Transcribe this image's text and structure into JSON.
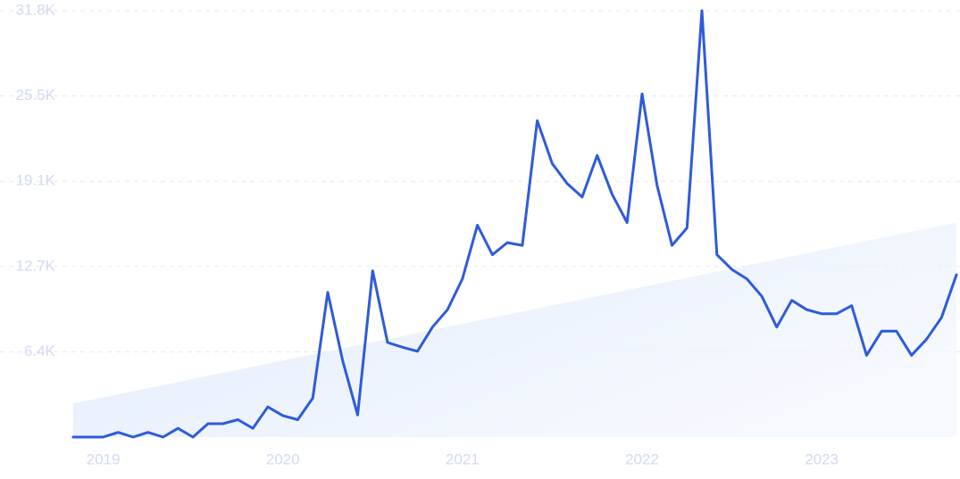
{
  "colors": {
    "line": "#2f5bd9",
    "trend_fill": "#dde9fb",
    "tick_text": "#d3daf2",
    "grid": "#e6eaf4"
  },
  "chart_data": {
    "type": "line",
    "title": "",
    "xlabel": "",
    "ylabel": "",
    "grid": true,
    "ylim": [
      0,
      31800
    ],
    "xlim": [
      "2018-11-01",
      "2023-10-01"
    ],
    "y_ticks": [
      {
        "value": 6360,
        "label": "6.4K"
      },
      {
        "value": 12720,
        "label": "12.7K"
      },
      {
        "value": 19080,
        "label": "19.1K"
      },
      {
        "value": 25440,
        "label": "25.5K"
      },
      {
        "value": 31800,
        "label": "31.8K"
      }
    ],
    "x_ticks": [
      {
        "value": "2019-01",
        "label": "2019"
      },
      {
        "value": "2020-01",
        "label": "2020"
      },
      {
        "value": "2021-01",
        "label": "2021"
      },
      {
        "value": "2022-01",
        "label": "2022"
      },
      {
        "value": "2023-01",
        "label": "2023"
      }
    ],
    "series": [
      {
        "x": [
          "2018-11",
          "2018-12",
          "2019-01",
          "2019-02",
          "2019-03",
          "2019-04",
          "2019-05",
          "2019-06",
          "2019-07",
          "2019-08",
          "2019-09",
          "2019-10",
          "2019-11",
          "2019-12",
          "2020-01",
          "2020-02",
          "2020-03",
          "2020-04",
          "2020-05",
          "2020-06",
          "2020-07",
          "2020-08",
          "2020-09",
          "2020-10",
          "2020-11",
          "2020-12",
          "2021-01",
          "2021-02",
          "2021-03",
          "2021-04",
          "2021-05",
          "2021-06",
          "2021-07",
          "2021-08",
          "2021-09",
          "2021-10",
          "2021-11",
          "2021-12",
          "2022-01",
          "2022-02",
          "2022-03",
          "2022-04",
          "2022-05",
          "2022-06",
          "2022-07",
          "2022-08",
          "2022-09",
          "2022-10",
          "2022-11",
          "2022-12",
          "2023-01",
          "2023-02",
          "2023-03",
          "2023-04",
          "2023-05",
          "2023-06",
          "2023-07",
          "2023-08",
          "2023-09",
          "2023-10"
        ],
        "values": [
          0,
          0,
          0,
          350,
          0,
          350,
          0,
          650,
          0,
          1000,
          1000,
          1300,
          650,
          2250,
          1600,
          1300,
          2900,
          10800,
          5700,
          1650,
          12400,
          7050,
          6700,
          6400,
          8200,
          9500,
          11800,
          15800,
          13600,
          14500,
          14300,
          23600,
          20400,
          18900,
          17900,
          21000,
          18100,
          16000,
          25600,
          18800,
          14300,
          15600,
          31800,
          13600,
          12500,
          11800,
          10500,
          8200,
          10200,
          9500,
          9200,
          9200,
          9800,
          6100,
          7900,
          7900,
          6100,
          7300,
          8900,
          12100
        ]
      }
    ],
    "trend": {
      "type": "area",
      "start_value": 2500,
      "end_value": 16000
    }
  }
}
